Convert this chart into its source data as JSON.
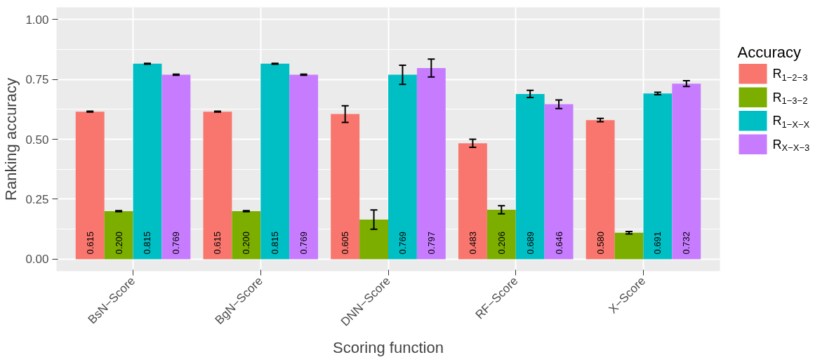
{
  "chart_data": {
    "type": "bar",
    "xlabel": "Scoring function",
    "ylabel": "Ranking accuracy",
    "legend_title": "Accuracy",
    "categories": [
      "BsN−Score",
      "BgN−Score",
      "DNN−Score",
      "RF−Score",
      "X−Score"
    ],
    "series": [
      {
        "name": "R$_{1−2−3}$",
        "color": "#f8766d",
        "values": [
          0.615,
          0.615,
          0.605,
          0.483,
          0.58
        ],
        "errors": [
          0.002,
          0.002,
          0.035,
          0.017,
          0.007
        ],
        "value_labels": [
          "0.615",
          "0.615",
          "0.605",
          "0.483",
          "0.580"
        ]
      },
      {
        "name": "R$_{1−3−2}$",
        "color": "#7cae00",
        "values": [
          0.2,
          0.2,
          0.165,
          0.206,
          0.11
        ],
        "errors": [
          0.002,
          0.002,
          0.04,
          0.017,
          0.005
        ],
        "value_labels": [
          "0.200",
          "0.200",
          null,
          "0.206",
          null
        ]
      },
      {
        "name": "R$_{1−X−X}$",
        "color": "#00bfc4",
        "values": [
          0.815,
          0.815,
          0.769,
          0.689,
          0.691
        ],
        "errors": [
          0.002,
          0.002,
          0.04,
          0.015,
          0.005
        ],
        "value_labels": [
          "0.815",
          "0.815",
          "0.769",
          "0.689",
          "0.691"
        ]
      },
      {
        "name": "R$_{X−X−3}$",
        "color": "#c77cff",
        "values": [
          0.769,
          0.769,
          0.797,
          0.646,
          0.732
        ],
        "errors": [
          0.002,
          0.002,
          0.037,
          0.018,
          0.012
        ],
        "value_labels": [
          "0.769",
          "0.769",
          "0.797",
          "0.646",
          "0.732"
        ]
      }
    ],
    "ylim": [
      -0.05,
      1.05
    ],
    "yticks": [
      {
        "value": 0,
        "label": "0.00"
      },
      {
        "value": 0.25,
        "label": "0.25"
      },
      {
        "value": 0.5,
        "label": "0.50"
      },
      {
        "value": 0.75,
        "label": "0.75"
      },
      {
        "value": 1,
        "label": "1.00"
      }
    ],
    "grid": true,
    "legend": "right"
  }
}
